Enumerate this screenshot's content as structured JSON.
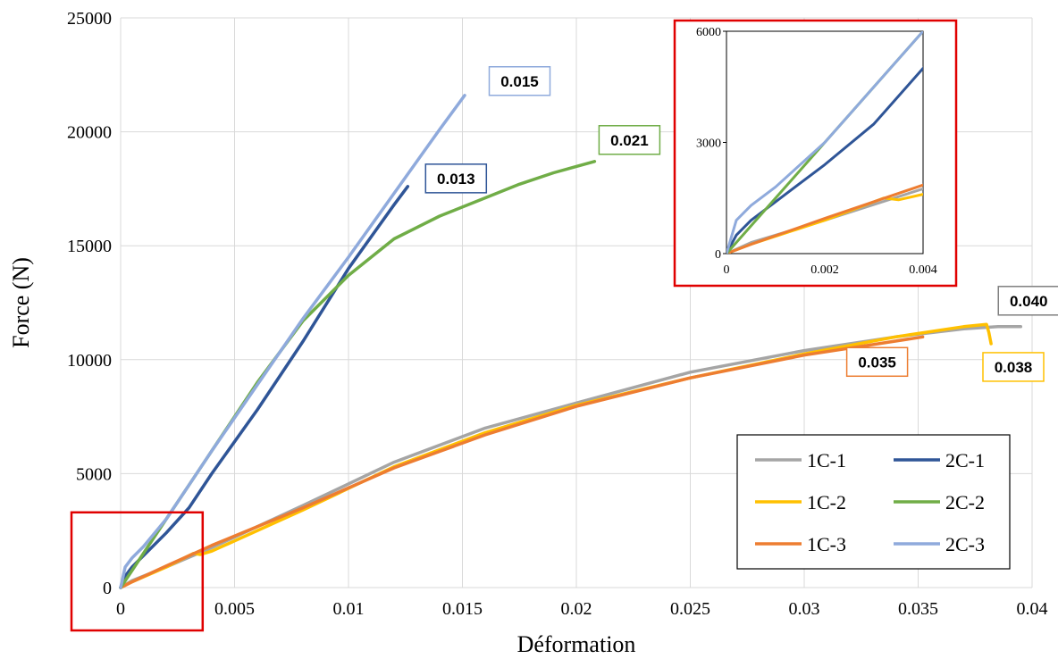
{
  "chart_data": {
    "type": "line",
    "xlabel": "Déformation",
    "ylabel": "Force (N)",
    "xlim": [
      0,
      0.04
    ],
    "ylim": [
      0,
      25000
    ],
    "x_ticks": [
      "0",
      "0.005",
      "0.01",
      "0.015",
      "0.02",
      "0.025",
      "0.03",
      "0.035",
      "0.04"
    ],
    "y_ticks": [
      "0",
      "5000",
      "10000",
      "15000",
      "20000",
      "25000"
    ],
    "grid": true,
    "legend_position": "bottom-right",
    "series": [
      {
        "name": "1C-1",
        "color": "#a5a5a5",
        "x": [
          0,
          0.0005,
          0.002,
          0.004,
          0.008,
          0.012,
          0.016,
          0.02,
          0.025,
          0.03,
          0.034,
          0.037,
          0.0385,
          0.0395
        ],
        "y": [
          0,
          300,
          900,
          1750,
          3600,
          5500,
          7000,
          8100,
          9450,
          10400,
          11000,
          11350,
          11450,
          11450
        ]
      },
      {
        "name": "1C-2",
        "color": "#ffc000",
        "x": [
          0,
          0.0005,
          0.002,
          0.0032,
          0.0035,
          0.004,
          0.008,
          0.012,
          0.016,
          0.02,
          0.025,
          0.03,
          0.034,
          0.037,
          0.038,
          0.0381,
          0.0382
        ],
        "y": [
          0,
          250,
          900,
          1500,
          1450,
          1600,
          3400,
          5300,
          6800,
          8000,
          9200,
          10250,
          11000,
          11450,
          11550,
          11200,
          10700
        ]
      },
      {
        "name": "1C-3",
        "color": "#ed7d31",
        "x": [
          0,
          0.0005,
          0.002,
          0.004,
          0.008,
          0.012,
          0.016,
          0.02,
          0.025,
          0.03,
          0.0352
        ],
        "y": [
          0,
          250,
          950,
          1850,
          3500,
          5250,
          6700,
          7950,
          9200,
          10200,
          11000
        ]
      },
      {
        "name": "2C-1",
        "color": "#2f5597",
        "x": [
          0,
          0.0002,
          0.0005,
          0.001,
          0.002,
          0.003,
          0.004,
          0.006,
          0.008,
          0.01,
          0.012,
          0.0126
        ],
        "y": [
          0,
          500,
          900,
          1400,
          2400,
          3500,
          5000,
          7800,
          10800,
          14000,
          16800,
          17600
        ]
      },
      {
        "name": "2C-2",
        "color": "#70ad47",
        "x": [
          0,
          0.0005,
          0.001,
          0.002,
          0.003,
          0.004,
          0.006,
          0.008,
          0.01,
          0.012,
          0.014,
          0.016,
          0.0175,
          0.019,
          0.0208
        ],
        "y": [
          0,
          750,
          1500,
          3000,
          4500,
          6000,
          9000,
          11700,
          13700,
          15300,
          16300,
          17100,
          17700,
          18200,
          18700
        ]
      },
      {
        "name": "2C-3",
        "color": "#8faadc",
        "x": [
          0,
          0.0002,
          0.0005,
          0.001,
          0.002,
          0.003,
          0.004,
          0.006,
          0.008,
          0.01,
          0.012,
          0.014,
          0.0151
        ],
        "y": [
          0,
          900,
          1300,
          1800,
          3000,
          4500,
          6000,
          8900,
          11800,
          14500,
          17300,
          20100,
          21600
        ]
      }
    ],
    "annotations": [
      {
        "text": "0.015",
        "color": "#8faadc",
        "x": 0.015,
        "y": 21600
      },
      {
        "text": "0.021",
        "color": "#70ad47",
        "x": 0.0208,
        "y": 18700
      },
      {
        "text": "0.013",
        "color": "#2f5597",
        "x": 0.0126,
        "y": 17600
      },
      {
        "text": "0.040",
        "color": "#7f7f7f",
        "x": 0.0395,
        "y": 11450
      },
      {
        "text": "0.035",
        "color": "#ed7d31",
        "x": 0.0352,
        "y": 11000
      },
      {
        "text": "0.038",
        "color": "#ffc000",
        "x": 0.038,
        "y": 10700
      }
    ],
    "inset": {
      "xlim": [
        0,
        0.004
      ],
      "ylim": [
        0,
        6000
      ],
      "x_ticks": [
        "0",
        "0.002",
        "0.004"
      ],
      "y_ticks": [
        "0",
        "3000",
        "6000"
      ],
      "zoom_box": {
        "xlim": [
          0,
          0.0036
        ],
        "ylim": [
          0,
          3300
        ]
      },
      "border_color": "#e00000"
    }
  }
}
